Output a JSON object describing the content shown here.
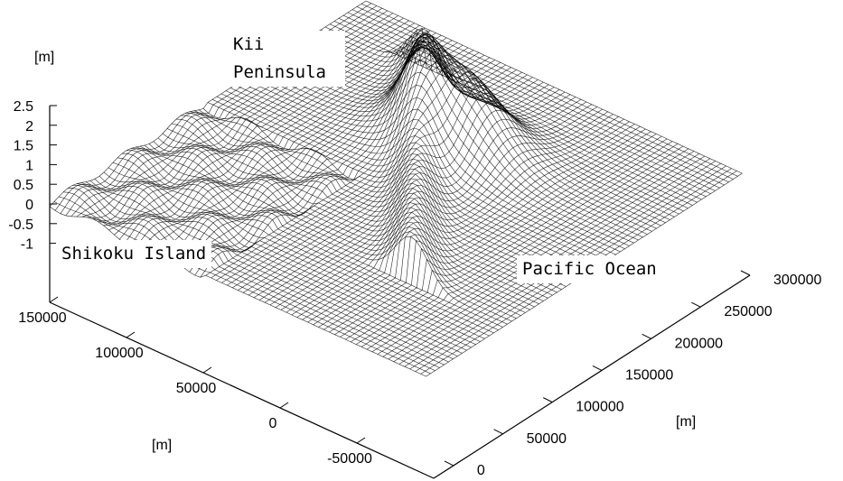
{
  "chart_data": {
    "type": "surface3d",
    "xlabel": "[m]",
    "ylabel": "[m]",
    "zlabel": "[m]",
    "xlim": [
      -100000,
      150000
    ],
    "xticks": [
      150000,
      100000,
      50000,
      0,
      -50000
    ],
    "ylim": [
      -20000,
      300000
    ],
    "yticks": [
      0,
      50000,
      100000,
      150000,
      200000,
      250000,
      300000
    ],
    "zlim": [
      -2.5,
      2.5
    ],
    "zticks": [
      2.5,
      2,
      1.5,
      1,
      0.5,
      0,
      -0.5,
      -1
    ],
    "annotations": [
      "Kii Peninsula",
      "Shikoku Island",
      "Pacific Ocean"
    ]
  }
}
